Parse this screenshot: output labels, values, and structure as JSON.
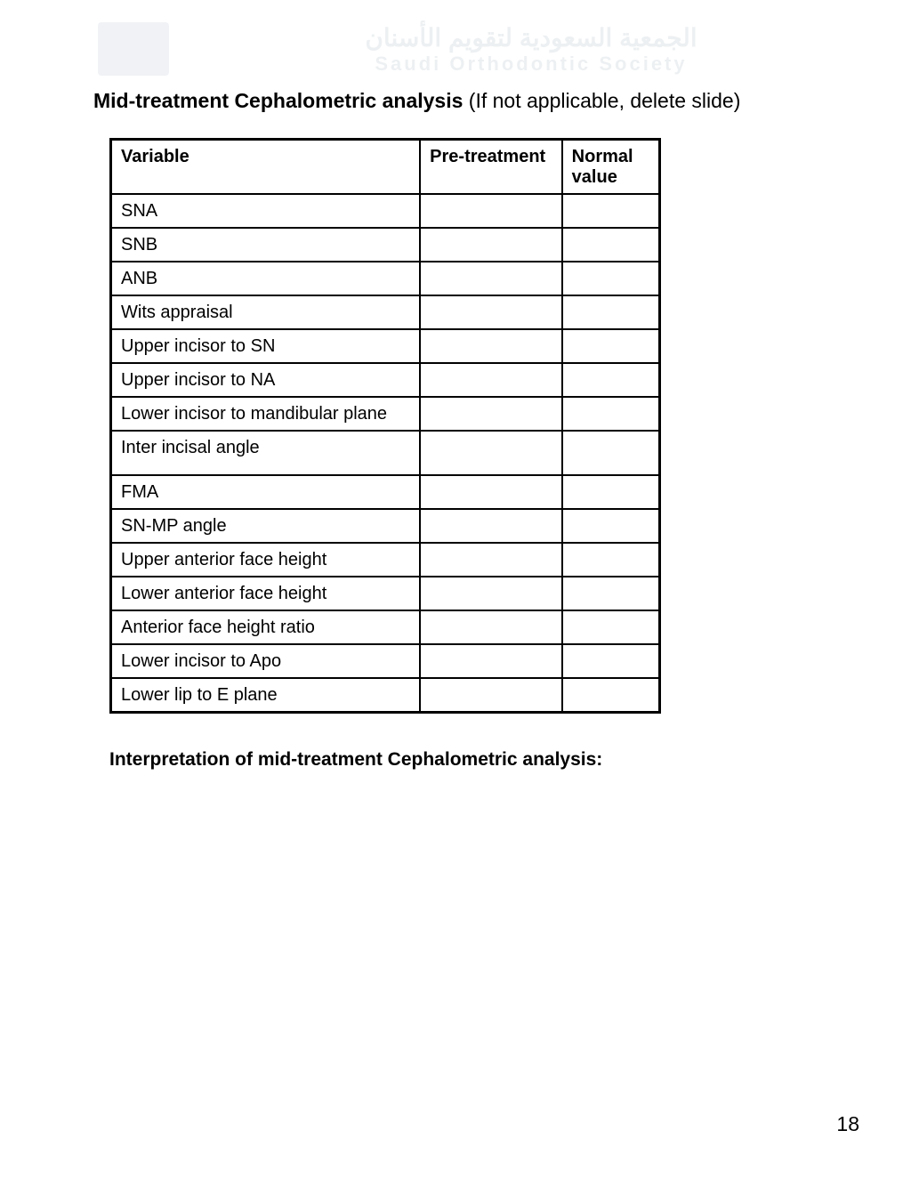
{
  "watermark": {
    "arabic": "الجمعية السعودية لتقويم الأسنان",
    "english": "Saudi Orthodontic Society"
  },
  "title": {
    "bold": "Mid-treatment Cephalometric analysis ",
    "note": "(If not applicable, delete slide)"
  },
  "table": {
    "columns": [
      "Variable",
      "Pre-treatment",
      "Normal value"
    ],
    "rows": [
      {
        "variable": "SNA",
        "pre": "",
        "normal": ""
      },
      {
        "variable": "SNB",
        "pre": "",
        "normal": ""
      },
      {
        "variable": "ANB",
        "pre": "",
        "normal": ""
      },
      {
        "variable": "Wits appraisal",
        "pre": "",
        "normal": ""
      },
      {
        "variable": "Upper incisor to SN",
        "pre": "",
        "normal": ""
      },
      {
        "variable": "Upper incisor to NA",
        "pre": "",
        "normal": ""
      },
      {
        "variable": "Lower incisor to mandibular plane",
        "pre": "",
        "normal": ""
      },
      {
        "variable": "Inter incisal angle",
        "pre": "",
        "normal": "",
        "tall": true
      },
      {
        "variable": "FMA",
        "pre": "",
        "normal": ""
      },
      {
        "variable": "SN-MP angle",
        "pre": "",
        "normal": ""
      },
      {
        "variable": "Upper anterior face height",
        "pre": "",
        "normal": ""
      },
      {
        "variable": "Lower anterior face height",
        "pre": "",
        "normal": ""
      },
      {
        "variable": "Anterior face height ratio",
        "pre": "",
        "normal": ""
      },
      {
        "variable": "Lower incisor to Apo",
        "pre": "",
        "normal": ""
      },
      {
        "variable": "Lower lip to E plane",
        "pre": "",
        "normal": ""
      }
    ]
  },
  "interpretation_label": "Interpretation of mid-treatment Cephalometric analysis:",
  "page_number": "18"
}
